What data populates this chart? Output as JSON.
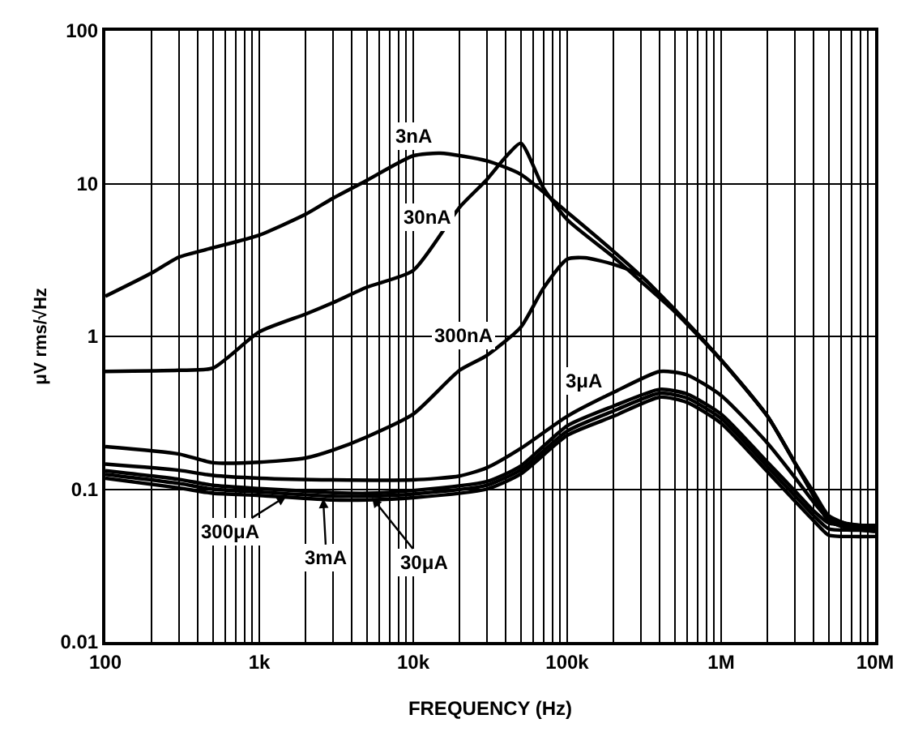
{
  "chart_data": {
    "type": "line",
    "xlabel": "FREQUENCY (Hz)",
    "ylabel": "μV rms/√Hz",
    "log": "xy",
    "grid": true,
    "marker": "none",
    "line_style": "solid",
    "xlim": [
      100,
      10000000
    ],
    "ylim": [
      0.01,
      100
    ],
    "xticks": [
      100,
      {
        "value": 1000,
        "label": "1k"
      },
      {
        "value": 10000,
        "label": "10k"
      },
      {
        "value": 100000,
        "label": "100k"
      },
      {
        "value": 1000000,
        "label": "1M"
      },
      {
        "value": 10000000,
        "label": "10M"
      }
    ],
    "yticks": [
      0.01,
      0.1,
      1,
      10,
      100
    ],
    "series": [
      {
        "color": "#000000",
        "x": [
          100,
          200,
          300,
          500,
          1000,
          2000,
          3000,
          5000,
          10000,
          15000,
          30000,
          50000,
          100000,
          200000,
          300000,
          500000,
          1000000,
          2000000,
          3000000,
          4000000,
          5000000,
          7000000,
          10000000
        ],
        "values": [
          1.83,
          2.6,
          3.3,
          3.8,
          4.6,
          6.3,
          8,
          10.5,
          15.2,
          15.8,
          14.1,
          11.5,
          6.5,
          3.6,
          2.5,
          1.5,
          0.7,
          0.3,
          0.15,
          0.095,
          0.067,
          0.058,
          0.055
        ]
      },
      {
        "color": "#000000",
        "x": [
          100,
          300,
          500,
          1000,
          2000,
          3000,
          5000,
          10000,
          20000,
          30000,
          40000,
          50000,
          70000,
          100000,
          200000,
          300000,
          500000,
          1000000,
          2000000,
          3000000,
          4000000,
          5000000,
          7000000,
          10000000
        ],
        "values": [
          0.59,
          0.6,
          0.62,
          1.07,
          1.4,
          1.66,
          2.1,
          2.7,
          7.0,
          10.6,
          15,
          18.4,
          9.4,
          5.8,
          3.3,
          2.3,
          1.45,
          0.7,
          0.3,
          0.15,
          0.09,
          0.062,
          0.055,
          0.053
        ]
      },
      {
        "color": "#000000",
        "x": [
          100,
          300,
          500,
          1000,
          2000,
          3000,
          5000,
          10000,
          20000,
          30000,
          50000,
          70000,
          100000,
          130000,
          200000,
          300000,
          500000,
          1000000,
          2000000,
          3000000,
          4000000,
          5000000,
          7000000,
          10000000
        ],
        "values": [
          0.19,
          0.17,
          0.149,
          0.15,
          0.16,
          0.18,
          0.22,
          0.31,
          0.6,
          0.75,
          1.15,
          2.06,
          3.2,
          3.27,
          2.96,
          2.5,
          1.47,
          0.7,
          0.3,
          0.15,
          0.09,
          0.062,
          0.055,
          0.053
        ]
      },
      {
        "color": "#000000",
        "x": [
          100,
          300,
          500,
          1000,
          3000,
          10000,
          20000,
          30000,
          50000,
          100000,
          200000,
          400000,
          600000,
          1000000,
          2000000,
          3000000,
          4000000,
          5000000,
          7000000,
          10000000
        ],
        "values": [
          0.146,
          0.133,
          0.123,
          0.118,
          0.115,
          0.115,
          0.122,
          0.138,
          0.185,
          0.3,
          0.43,
          0.59,
          0.56,
          0.41,
          0.2,
          0.12,
          0.082,
          0.064,
          0.059,
          0.057
        ]
      },
      {
        "color": "#000000",
        "x": [
          100,
          300,
          500,
          1000,
          3000,
          5000,
          10000,
          30000,
          50000,
          100000,
          200000,
          400000,
          600000,
          1000000,
          2000000,
          3000000,
          4000000,
          5000000,
          7000000,
          10000000
        ],
        "values": [
          0.132,
          0.116,
          0.106,
          0.101,
          0.095,
          0.094,
          0.098,
          0.112,
          0.142,
          0.26,
          0.35,
          0.45,
          0.42,
          0.31,
          0.15,
          0.098,
          0.072,
          0.06,
          0.058,
          0.058
        ]
      },
      {
        "color": "#000000",
        "x": [
          100,
          300,
          500,
          1000,
          3000,
          5000,
          10000,
          30000,
          50000,
          100000,
          200000,
          400000,
          600000,
          1000000,
          2000000,
          3000000,
          4000000,
          5000000,
          7000000,
          10000000
        ],
        "values": [
          0.125,
          0.109,
          0.1,
          0.096,
          0.09,
          0.09,
          0.093,
          0.106,
          0.134,
          0.24,
          0.325,
          0.425,
          0.395,
          0.29,
          0.14,
          0.091,
          0.067,
          0.055,
          0.054,
          0.054
        ]
      },
      {
        "color": "#000000",
        "x": [
          100,
          300,
          500,
          1000,
          3000,
          5000,
          10000,
          30000,
          50000,
          100000,
          200000,
          400000,
          600000,
          1000000,
          2000000,
          3000000,
          4000000,
          5000000,
          7000000,
          10000000
        ],
        "values": [
          0.118,
          0.102,
          0.094,
          0.091,
          0.085,
          0.085,
          0.088,
          0.1,
          0.126,
          0.225,
          0.3,
          0.4,
          0.37,
          0.27,
          0.13,
          0.084,
          0.062,
          0.05,
          0.049,
          0.049
        ]
      }
    ],
    "annotations": [
      {
        "text": "3nA",
        "x": 10000,
        "y": 15.2
      },
      {
        "text": "30nA",
        "x": 15000,
        "y": 4.3
      },
      {
        "text": "300nA",
        "x": 30000,
        "y": 0.75
      },
      {
        "text": "3μA",
        "x": 130000,
        "y": 0.36
      },
      {
        "text": "300μA",
        "x": 1500,
        "y": 0.09
      },
      {
        "text": "3mA",
        "x": 2600,
        "y": 0.087
      },
      {
        "text": "30μA",
        "x": 5400,
        "y": 0.088
      }
    ]
  }
}
